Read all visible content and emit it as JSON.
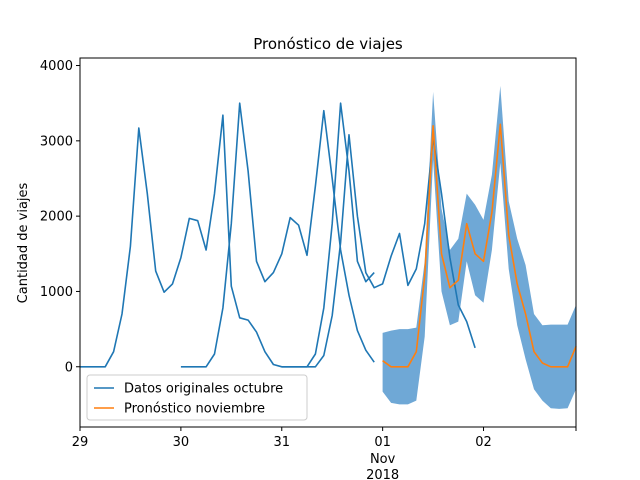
{
  "chart_data": {
    "type": "line",
    "title": "Pronóstico de viajes",
    "xlabel": "",
    "ylabel": "Cantidad de viajes",
    "x_unit": "hours since 2018-10-29 00:00",
    "xlim": [
      0,
      118
    ],
    "ylim": [
      -800,
      4100
    ],
    "yticks": [
      0,
      1000,
      2000,
      3000,
      4000
    ],
    "xticks": [
      {
        "x": 0,
        "label": "29"
      },
      {
        "x": 24,
        "label": "30"
      },
      {
        "x": 48,
        "label": "31"
      },
      {
        "x": 72,
        "label": "01"
      },
      {
        "x": 96,
        "label": "02"
      },
      {
        "x": 118,
        "label": ""
      }
    ],
    "x_month_label": "Nov",
    "x_year_label": "2018",
    "grid": false,
    "legend_position": "lower-left",
    "colors": {
      "original": "#1f77b4",
      "forecast": "#ff7f0e",
      "band": "#6fa8d6"
    },
    "series": [
      {
        "name": "Datos originales octubre",
        "x": [
          0,
          2,
          4,
          6,
          8,
          10,
          12,
          14,
          16,
          18,
          20,
          22,
          24,
          26,
          28,
          30,
          32,
          34,
          36,
          38,
          40,
          42,
          44,
          46,
          48,
          50,
          52,
          54,
          56,
          58,
          60,
          62,
          64,
          66,
          68,
          70
        ],
        "values": [
          0,
          0,
          0,
          0,
          200,
          700,
          1600,
          3170,
          2300,
          1270,
          990,
          1100,
          1450,
          1970,
          1940,
          1550,
          2300,
          3340,
          1070,
          650,
          620,
          460,
          200,
          30,
          0,
          0,
          0,
          0,
          170,
          780,
          1900,
          3500,
          2600,
          1400,
          1130,
          1250
        ]
      },
      {
        "name": "Pronóstico noviembre",
        "x": [
          72,
          74,
          76,
          78,
          80,
          82,
          84,
          86,
          88,
          90,
          92,
          94,
          96,
          98,
          100,
          102,
          104,
          106,
          108,
          110,
          112,
          114,
          116,
          118
        ],
        "values": [
          80,
          0,
          0,
          0,
          200,
          1200,
          3200,
          1500,
          1050,
          1150,
          1900,
          1500,
          1400,
          2050,
          3220,
          1750,
          1100,
          700,
          200,
          50,
          0,
          0,
          0,
          270
        ]
      }
    ],
    "series_extra": [
      {
        "x": [
          24,
          26,
          28,
          30,
          32,
          34,
          36,
          38,
          40,
          42,
          44,
          46,
          48,
          50,
          52,
          54,
          56,
          58,
          60,
          62,
          64,
          66,
          68,
          70
        ],
        "values": [
          0,
          0,
          0,
          0,
          170,
          780,
          1900,
          3500,
          2600,
          1400,
          1130,
          1250,
          1500,
          1980,
          1880,
          1480,
          2400,
          3400,
          2500,
          1550,
          950,
          480,
          220,
          60
        ]
      },
      {
        "x": [
          48,
          50,
          52,
          54,
          56,
          58,
          60,
          62,
          64,
          66,
          68,
          70,
          72,
          74,
          76,
          78,
          80,
          82,
          84,
          86,
          88,
          90,
          92,
          94
        ],
        "values": [
          0,
          0,
          0,
          0,
          0,
          150,
          680,
          1650,
          3080,
          2000,
          1250,
          1050,
          1100,
          1470,
          1770,
          1080,
          1300,
          1900,
          3040,
          2300,
          1450,
          820,
          600,
          250
        ]
      }
    ]
  },
  "band": {
    "x": [
      72,
      74,
      76,
      78,
      80,
      82,
      84,
      86,
      88,
      90,
      92,
      94,
      96,
      98,
      100,
      102,
      104,
      106,
      108,
      110,
      112,
      114,
      116,
      118
    ],
    "upper": [
      450,
      480,
      500,
      500,
      520,
      1400,
      3650,
      2100,
      1550,
      1700,
      2300,
      2150,
      1950,
      2550,
      3730,
      2200,
      1700,
      1350,
      700,
      550,
      560,
      560,
      560,
      820
    ],
    "lower": [
      -330,
      -480,
      -500,
      -500,
      -450,
      400,
      2750,
      1000,
      550,
      600,
      1400,
      950,
      850,
      1550,
      2710,
      1300,
      550,
      100,
      -300,
      -450,
      -550,
      -560,
      -550,
      -300
    ]
  }
}
